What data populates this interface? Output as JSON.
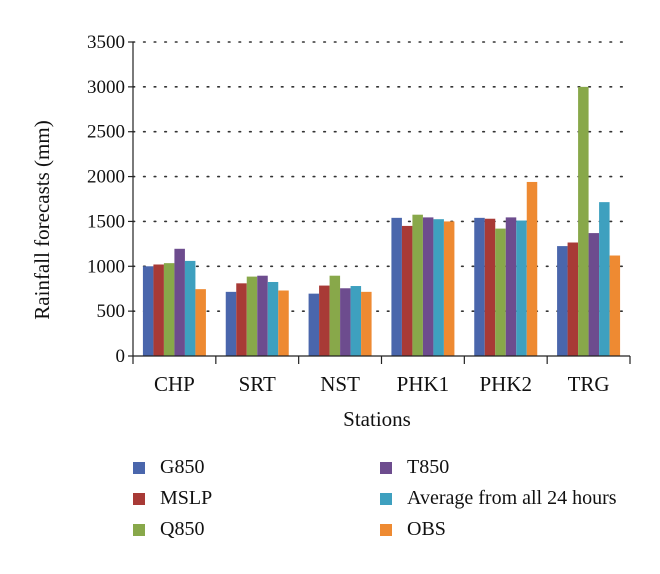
{
  "chart_data": {
    "type": "bar",
    "title": "",
    "xlabel": "Stations",
    "ylabel": "Rainfall forecasts (mm)",
    "ylim": [
      0,
      3500
    ],
    "yticks": [
      "0",
      "500",
      "1000",
      "1500",
      "2000",
      "2500",
      "3000",
      "3500"
    ],
    "grid": "dotted horizontal",
    "legend_position": "bottom",
    "categories": [
      "CHP",
      "SRT",
      "NST",
      "PHK1",
      "PHK2",
      "TRG"
    ],
    "series": [
      {
        "name": "G850",
        "color": "#4a66ac",
        "values": [
          1000,
          715,
          695,
          1540,
          1540,
          1225
        ]
      },
      {
        "name": "MSLP",
        "color": "#a83a36",
        "values": [
          1020,
          810,
          785,
          1450,
          1530,
          1265
        ]
      },
      {
        "name": "Q850",
        "color": "#88a84a",
        "values": [
          1035,
          885,
          895,
          1575,
          1420,
          3000
        ]
      },
      {
        "name": "T850",
        "color": "#6d4c8e",
        "values": [
          1195,
          895,
          755,
          1545,
          1545,
          1370
        ]
      },
      {
        "name": "Average from all 24 hours",
        "color": "#3ea0bf",
        "values": [
          1060,
          825,
          780,
          1525,
          1510,
          1715
        ]
      },
      {
        "name": "OBS",
        "color": "#ee8a32",
        "values": [
          745,
          730,
          715,
          1500,
          1940,
          1120
        ]
      }
    ]
  }
}
